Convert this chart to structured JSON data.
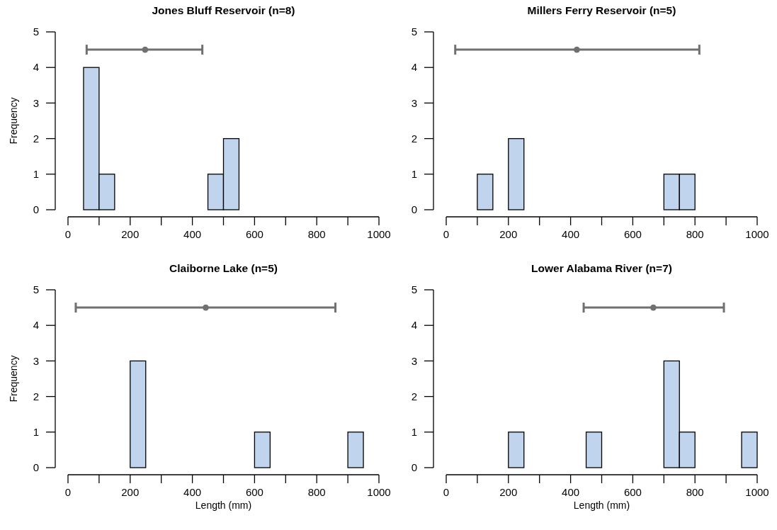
{
  "chart_data": [
    {
      "type": "histogram",
      "title": "Jones Bluff Reservoir (n=8)",
      "ylabel": "Frequency",
      "bins": [
        0,
        50,
        100,
        150,
        200,
        250,
        300,
        350,
        400,
        450,
        500,
        550,
        600,
        650,
        700,
        750,
        800,
        850,
        900,
        950,
        1000
      ],
      "xlim": [
        0,
        1000
      ],
      "xticks": [
        0,
        {
          "value": 100,
          "label": null
        },
        200,
        {
          "value": 300,
          "label": null
        },
        400,
        {
          "value": 500,
          "label": null
        },
        600,
        {
          "value": 700,
          "label": null
        },
        800,
        {
          "value": 900,
          "label": null
        },
        1000
      ],
      "ylim": [
        0,
        5
      ],
      "yticks": [
        0,
        1,
        2,
        3,
        4,
        5
      ],
      "marker": "circle",
      "series": [
        {
          "color": "#c0d4ee",
          "values": [
            0,
            4,
            1,
            0,
            0,
            0,
            0,
            0,
            0,
            1,
            2,
            0,
            0,
            0,
            0,
            0,
            0,
            0,
            0,
            0
          ]
        },
        {
          "type": "scatter",
          "color": "#707070",
          "x": [
            248
          ],
          "values": [
            4.5
          ],
          "xerrors": [
            [
              60,
              432
            ]
          ]
        }
      ]
    },
    {
      "type": "histogram",
      "title": "Millers Ferry Reservoir (n=5)",
      "bins": [
        0,
        50,
        100,
        150,
        200,
        250,
        300,
        350,
        400,
        450,
        500,
        550,
        600,
        650,
        700,
        750,
        800,
        850,
        900,
        950,
        1000
      ],
      "xlim": [
        0,
        1000
      ],
      "xticks": [
        0,
        {
          "value": 100,
          "label": null
        },
        200,
        {
          "value": 300,
          "label": null
        },
        400,
        {
          "value": 500,
          "label": null
        },
        600,
        {
          "value": 700,
          "label": null
        },
        800,
        {
          "value": 900,
          "label": null
        },
        1000
      ],
      "ylim": [
        0,
        5
      ],
      "yticks": [
        0,
        1,
        2,
        3,
        4,
        5
      ],
      "marker": "circle",
      "series": [
        {
          "color": "#c0d4ee",
          "values": [
            0,
            0,
            1,
            0,
            2,
            0,
            0,
            0,
            0,
            0,
            0,
            0,
            0,
            0,
            1,
            1,
            0,
            0,
            0,
            0
          ]
        },
        {
          "type": "scatter",
          "color": "#707070",
          "x": [
            420
          ],
          "values": [
            4.5
          ],
          "xerrors": [
            [
              29,
              814
            ]
          ]
        }
      ]
    },
    {
      "type": "histogram",
      "title": "Claiborne Lake (n=5)",
      "xlabel": "Length (mm)",
      "ylabel": "Frequency",
      "bins": [
        0,
        50,
        100,
        150,
        200,
        250,
        300,
        350,
        400,
        450,
        500,
        550,
        600,
        650,
        700,
        750,
        800,
        850,
        900,
        950,
        1000
      ],
      "xlim": [
        0,
        1000
      ],
      "xticks": [
        0,
        {
          "value": 100,
          "label": null
        },
        200,
        {
          "value": 300,
          "label": null
        },
        400,
        {
          "value": 500,
          "label": null
        },
        600,
        {
          "value": 700,
          "label": null
        },
        800,
        {
          "value": 900,
          "label": null
        },
        1000
      ],
      "ylim": [
        0,
        5
      ],
      "yticks": [
        0,
        1,
        2,
        3,
        4,
        5
      ],
      "marker": "circle",
      "series": [
        {
          "color": "#c0d4ee",
          "values": [
            0,
            0,
            0,
            0,
            3,
            0,
            0,
            0,
            0,
            0,
            0,
            0,
            1,
            0,
            0,
            0,
            0,
            0,
            1,
            0
          ]
        },
        {
          "type": "scatter",
          "color": "#707070",
          "x": [
            443
          ],
          "values": [
            4.5
          ],
          "xerrors": [
            [
              25,
              860
            ]
          ]
        }
      ]
    },
    {
      "type": "histogram",
      "title": "Lower Alabama River (n=7)",
      "xlabel": "Length (mm)",
      "bins": [
        0,
        50,
        100,
        150,
        200,
        250,
        300,
        350,
        400,
        450,
        500,
        550,
        600,
        650,
        700,
        750,
        800,
        850,
        900,
        950,
        1000
      ],
      "xlim": [
        0,
        1000
      ],
      "xticks": [
        0,
        {
          "value": 100,
          "label": null
        },
        200,
        {
          "value": 300,
          "label": null
        },
        400,
        {
          "value": 500,
          "label": null
        },
        600,
        {
          "value": 700,
          "label": null
        },
        800,
        {
          "value": 900,
          "label": null
        },
        1000
      ],
      "ylim": [
        0,
        5
      ],
      "yticks": [
        0,
        1,
        2,
        3,
        4,
        5
      ],
      "marker": "circle",
      "series": [
        {
          "color": "#c0d4ee",
          "values": [
            0,
            0,
            0,
            0,
            1,
            0,
            0,
            0,
            0,
            1,
            0,
            0,
            0,
            0,
            3,
            1,
            0,
            0,
            0,
            1
          ]
        },
        {
          "type": "scatter",
          "color": "#707070",
          "x": [
            666
          ],
          "values": [
            4.5
          ],
          "xerrors": [
            [
              442,
              893
            ]
          ]
        }
      ]
    }
  ]
}
